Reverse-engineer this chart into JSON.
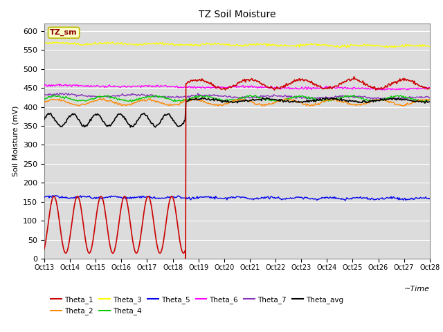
{
  "title": "TZ Soil Moisture",
  "ylabel": "Soil Moisture (mV)",
  "xlabel": "~Time",
  "label_box": "TZ_sm",
  "ylim": [
    0,
    620
  ],
  "yticks": [
    0,
    50,
    100,
    150,
    200,
    250,
    300,
    350,
    400,
    450,
    500,
    550,
    600
  ],
  "background_color": "#dcdcdc",
  "fig_bgcolor": "#ffffff",
  "colors": {
    "Theta_1": "#cc0000",
    "Theta_2": "#ff8800",
    "Theta_3": "#ffff00",
    "Theta_4": "#00cc00",
    "Theta_5": "#0000ee",
    "Theta_6": "#ff00ff",
    "Theta_7": "#8833bb",
    "Theta_avg": "#000000"
  },
  "x_tick_positions": [
    13,
    14,
    15,
    16,
    17,
    18,
    19,
    20,
    21,
    22,
    23,
    24,
    25,
    26,
    27,
    28
  ],
  "x_tick_labels": [
    "Oct 13",
    "Oct 14",
    "Oct 15",
    "Oct 16",
    "Oct 17",
    "Oct 18",
    "Oct 19",
    "Oct 20",
    "Oct 21",
    "Oct 22",
    "Oct 23",
    "Oct 24",
    "Oct 25",
    "Oct 26",
    "Oct 27",
    "Oct 28"
  ]
}
